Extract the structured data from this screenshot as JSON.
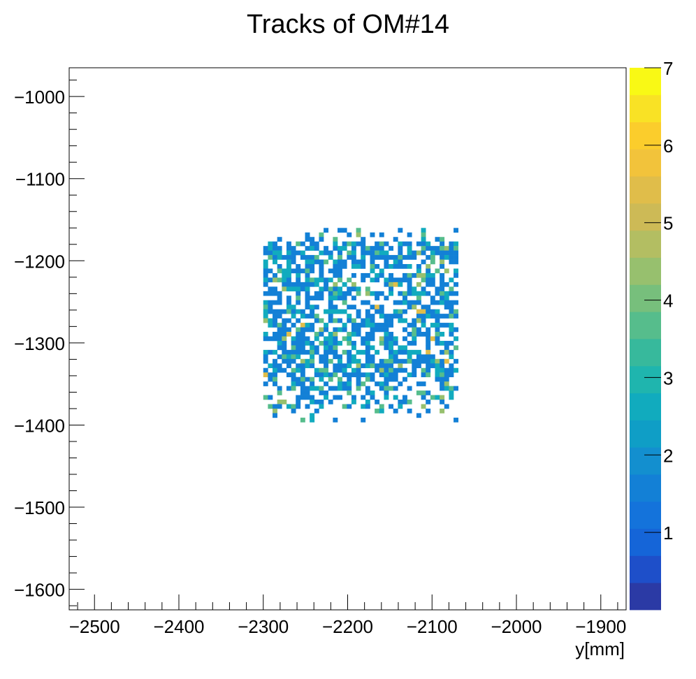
{
  "chart_data": {
    "type": "heatmap",
    "title": "Tracks of OM#14",
    "xlabel": "y[mm]",
    "ylabel": "",
    "xlim": [
      -2530,
      -1870
    ],
    "ylim": [
      -1625,
      -965
    ],
    "x_ticks": [
      -2500,
      -2400,
      -2300,
      -2200,
      -2100,
      -2000,
      -1900
    ],
    "x_tick_labels": [
      "−2500",
      "−2400",
      "−2300",
      "−2200",
      "−2100",
      "−2000",
      "−1900"
    ],
    "y_ticks": [
      -1000,
      -1100,
      -1200,
      -1300,
      -1400,
      -1500,
      -1600
    ],
    "y_tick_labels": [
      "−1000",
      "−1100",
      "−1200",
      "−1300",
      "−1400",
      "−1500",
      "−1600"
    ],
    "z_range": [
      0,
      7
    ],
    "z_ticks": [
      1,
      2,
      3,
      4,
      5,
      6,
      7
    ],
    "z_tick_labels": [
      "1",
      "2",
      "3",
      "4",
      "5",
      "6",
      "7"
    ],
    "palette": [
      "#2b3aa5",
      "#1e4fc9",
      "#1565d8",
      "#1473db",
      "#1380d6",
      "#138fcf",
      "#0f9ec6",
      "#11abbe",
      "#1fb5ae",
      "#37b99c",
      "#56bd8c",
      "#77bf7c",
      "#97c06e",
      "#b3be62",
      "#cdba56",
      "#e0bd4a",
      "#f2c33b",
      "#fbcd2c",
      "#f9e225",
      "#f9f915"
    ],
    "occupancy": {
      "x_range": [
        -2300,
        -2073
      ],
      "y_range": [
        -1395,
        -1160
      ],
      "bin_size": 5.5,
      "fill_fraction": 0.62,
      "typical_value": 1,
      "max_value": 5
    },
    "grid": false,
    "legend": "none"
  }
}
